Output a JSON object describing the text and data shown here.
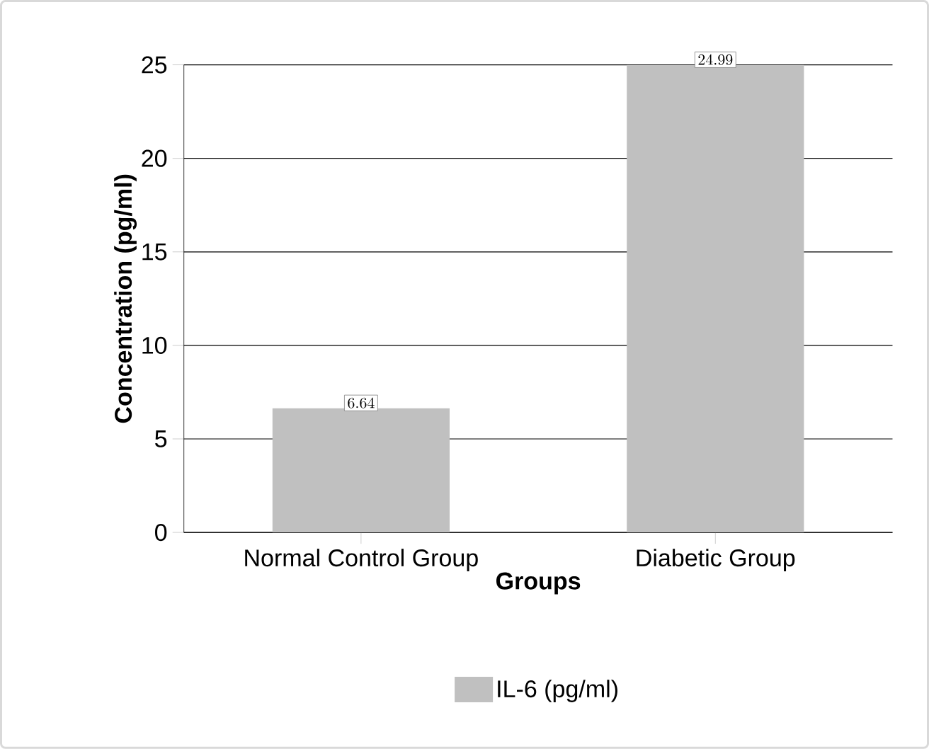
{
  "chart_data": {
    "type": "bar",
    "xlabel": "Groups",
    "ylabel": "Concentration (pg/ml)",
    "categories": [
      "Normal Control Group",
      "Diabetic Group"
    ],
    "series": [
      {
        "name": "IL-6 (pg/ml)",
        "color": "#c0c0c0",
        "values": [
          6.64,
          24.99
        ]
      }
    ],
    "ylim": [
      0,
      25
    ],
    "yticks": [
      0,
      5,
      10,
      15,
      20,
      25
    ],
    "grid": "y",
    "legend": "bottom",
    "data_labels": true
  }
}
